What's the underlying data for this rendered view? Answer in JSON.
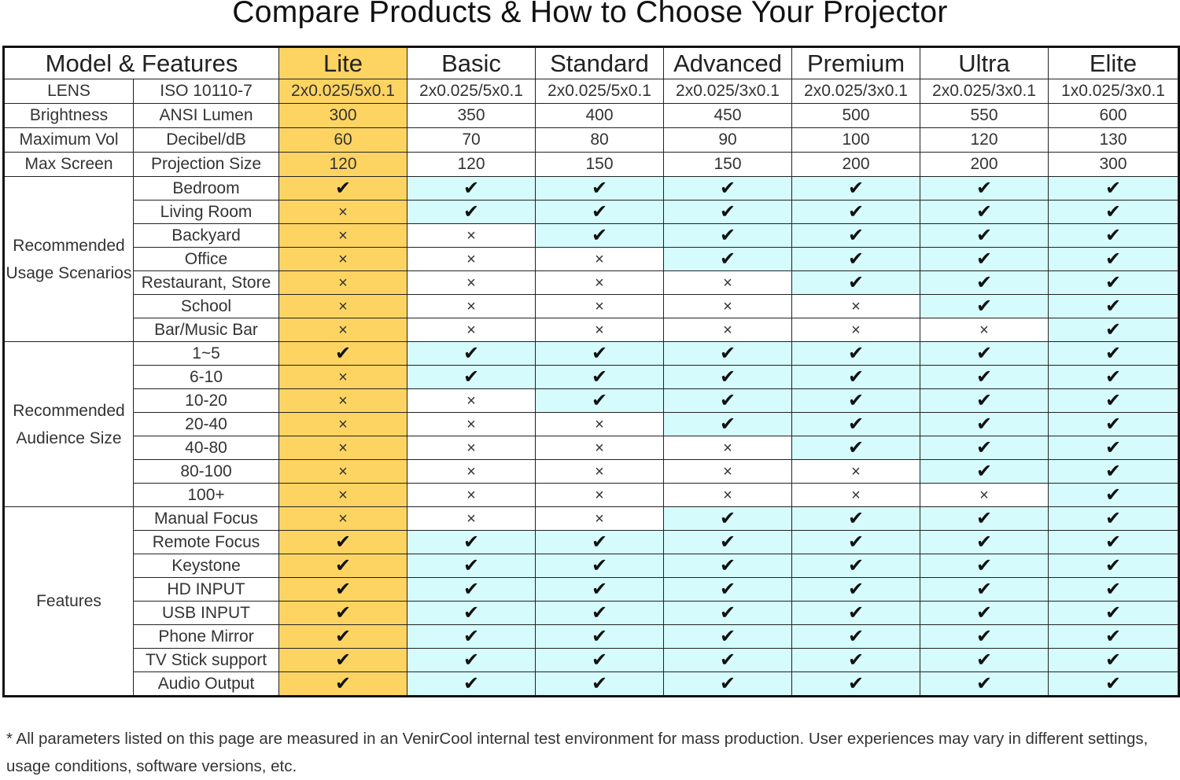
{
  "title": "Compare Products & How to Choose Your Projector",
  "header": {
    "label": "Model & Features",
    "models": [
      "Lite",
      "Basic",
      "Standard",
      "Advanced",
      "Premium",
      "Ultra",
      "Elite"
    ]
  },
  "colors": {
    "lite": "#fdd462",
    "yes": "#d5fbfd"
  },
  "specs": [
    {
      "name": "LENS",
      "unit": "ISO 10110-7",
      "values": [
        "2x0.025/5x0.1",
        "2x0.025/5x0.1",
        "2x0.025/5x0.1",
        "2x0.025/3x0.1",
        "2x0.025/3x0.1",
        "2x0.025/3x0.1",
        "1x0.025/3x0.1"
      ]
    },
    {
      "name": "Brightness",
      "unit": "ANSI Lumen",
      "values": [
        "300",
        "350",
        "400",
        "450",
        "500",
        "550",
        "600"
      ]
    },
    {
      "name": "Maximum Vol",
      "unit": "Decibel/dB",
      "values": [
        "60",
        "70",
        "80",
        "90",
        "100",
        "120",
        "130"
      ]
    },
    {
      "name": "Max Screen",
      "unit": "Projection Size",
      "values": [
        "120",
        "120",
        "150",
        "150",
        "200",
        "200",
        "300"
      ]
    }
  ],
  "groups": [
    {
      "name": "Recommended Usage Scenarios",
      "rows": [
        {
          "label": "Bedroom",
          "support": [
            true,
            true,
            true,
            true,
            true,
            true,
            true
          ]
        },
        {
          "label": "Living Room",
          "support": [
            false,
            true,
            true,
            true,
            true,
            true,
            true
          ]
        },
        {
          "label": "Backyard",
          "support": [
            false,
            false,
            true,
            true,
            true,
            true,
            true
          ]
        },
        {
          "label": "Office",
          "support": [
            false,
            false,
            false,
            true,
            true,
            true,
            true
          ]
        },
        {
          "label": "Restaurant, Store",
          "support": [
            false,
            false,
            false,
            false,
            true,
            true,
            true
          ]
        },
        {
          "label": "School",
          "support": [
            false,
            false,
            false,
            false,
            false,
            true,
            true
          ]
        },
        {
          "label": "Bar/Music Bar",
          "support": [
            false,
            false,
            false,
            false,
            false,
            false,
            true
          ]
        }
      ]
    },
    {
      "name": "Recommended Audience Size",
      "rows": [
        {
          "label": "1~5",
          "support": [
            true,
            true,
            true,
            true,
            true,
            true,
            true
          ]
        },
        {
          "label": "6-10",
          "support": [
            false,
            true,
            true,
            true,
            true,
            true,
            true
          ]
        },
        {
          "label": "10-20",
          "support": [
            false,
            false,
            true,
            true,
            true,
            true,
            true
          ]
        },
        {
          "label": "20-40",
          "support": [
            false,
            false,
            false,
            true,
            true,
            true,
            true
          ]
        },
        {
          "label": "40-80",
          "support": [
            false,
            false,
            false,
            false,
            true,
            true,
            true
          ]
        },
        {
          "label": "80-100",
          "support": [
            false,
            false,
            false,
            false,
            false,
            true,
            true
          ]
        },
        {
          "label": "100+",
          "support": [
            false,
            false,
            false,
            false,
            false,
            false,
            true
          ]
        }
      ]
    },
    {
      "name": "Features",
      "rows": [
        {
          "label": "Manual Focus",
          "support": [
            false,
            false,
            false,
            true,
            true,
            true,
            true
          ]
        },
        {
          "label": "Remote Focus",
          "support": [
            true,
            true,
            true,
            true,
            true,
            true,
            true
          ]
        },
        {
          "label": "Keystone",
          "support": [
            true,
            true,
            true,
            true,
            true,
            true,
            true
          ]
        },
        {
          "label": "HD INPUT",
          "support": [
            true,
            true,
            true,
            true,
            true,
            true,
            true
          ]
        },
        {
          "label": "USB INPUT",
          "support": [
            true,
            true,
            true,
            true,
            true,
            true,
            true
          ]
        },
        {
          "label": "Phone Mirror",
          "support": [
            true,
            true,
            true,
            true,
            true,
            true,
            true
          ]
        },
        {
          "label": "TV Stick support",
          "support": [
            true,
            true,
            true,
            true,
            true,
            true,
            true
          ]
        },
        {
          "label": "Audio Output",
          "support": [
            true,
            true,
            true,
            true,
            true,
            true,
            true
          ]
        }
      ]
    }
  ],
  "footnote": "* All parameters listed on this page are measured in an VenirCool internal test environment for mass production. User experiences may vary in different settings, usage conditions, software versions, etc."
}
